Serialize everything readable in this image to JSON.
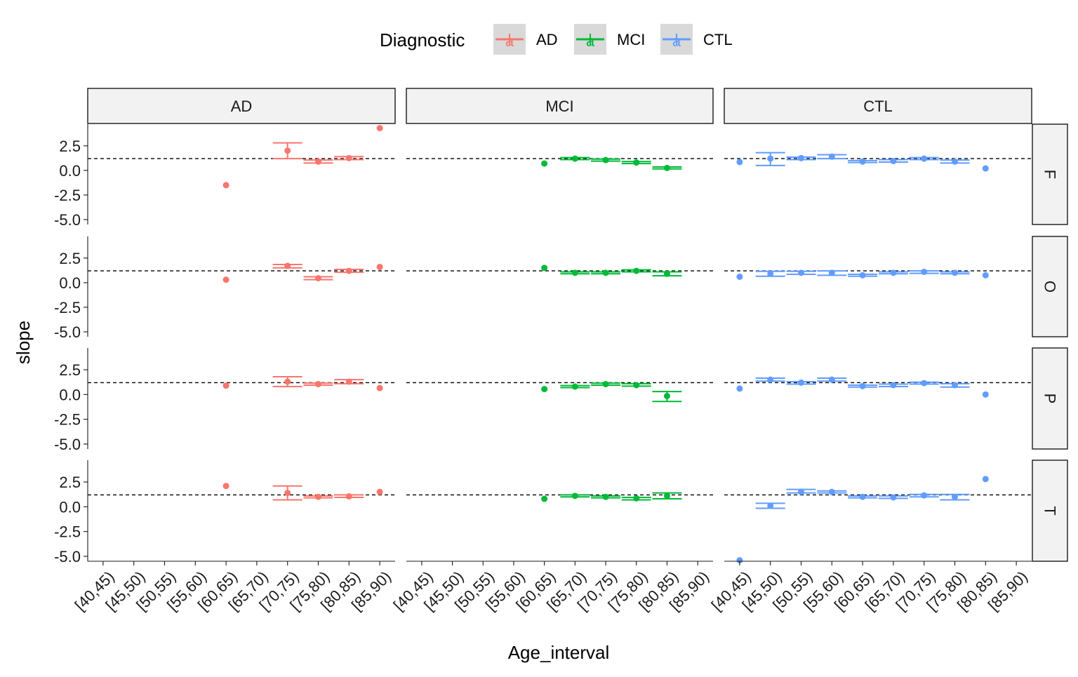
{
  "chart_data": {
    "type": "scatter",
    "xlabel": "Age_interval",
    "ylabel": "slope",
    "categories": [
      "[40,45)",
      "[45,50)",
      "[50,55)",
      "[55,60)",
      "[60,65)",
      "[65,70)",
      "[70,75)",
      "[75,80)",
      "[80,85)",
      "[85,90)"
    ],
    "y_ticks": [
      2.5,
      0.0,
      -2.5,
      -5.0
    ],
    "y_tick_labels": [
      "2.5",
      "0.0",
      "-2.5",
      "-5.0"
    ],
    "ylim": [
      -5.5,
      4.7
    ],
    "reference_line": 1.2,
    "legend": {
      "title": "Diagnostic",
      "position": "top",
      "key_glyph": "a",
      "entries": [
        {
          "name": "AD",
          "color": "#F8766D"
        },
        {
          "name": "MCI",
          "color": "#00BA38"
        },
        {
          "name": "CTL",
          "color": "#619CFF"
        }
      ]
    },
    "facet_columns": [
      "AD",
      "MCI",
      "CTL"
    ],
    "facet_rows": [
      "F",
      "O",
      "P",
      "T"
    ],
    "panels": [
      {
        "col": "AD",
        "row": "F",
        "points": [
          {
            "x": "[60,65)",
            "y": -1.5
          },
          {
            "x": "[70,75)",
            "y": 2.0,
            "ymin": 1.2,
            "ymax": 2.8
          },
          {
            "x": "[75,80)",
            "y": 0.9,
            "ymin": 0.75,
            "ymax": 1.05
          },
          {
            "x": "[80,85)",
            "y": 1.25,
            "ymin": 1.1,
            "ymax": 1.4
          },
          {
            "x": "[85,90)",
            "y": 4.3
          }
        ]
      },
      {
        "col": "MCI",
        "row": "F",
        "points": [
          {
            "x": "[60,65)",
            "y": 0.7
          },
          {
            "x": "[65,70)",
            "y": 1.2,
            "ymin": 1.1,
            "ymax": 1.3
          },
          {
            "x": "[70,75)",
            "y": 1.05,
            "ymin": 0.95,
            "ymax": 1.15
          },
          {
            "x": "[75,80)",
            "y": 0.8,
            "ymin": 0.7,
            "ymax": 0.9
          },
          {
            "x": "[80,85)",
            "y": 0.25,
            "ymin": 0.15,
            "ymax": 0.35
          }
        ]
      },
      {
        "col": "CTL",
        "row": "F",
        "points": [
          {
            "x": "[40,45)",
            "y": 0.85
          },
          {
            "x": "[45,50)",
            "y": 1.2,
            "ymin": 0.5,
            "ymax": 1.8
          },
          {
            "x": "[50,55)",
            "y": 1.25,
            "ymin": 1.1,
            "ymax": 1.35
          },
          {
            "x": "[55,60)",
            "y": 1.4,
            "ymin": 1.2,
            "ymax": 1.6
          },
          {
            "x": "[60,65)",
            "y": 0.9,
            "ymin": 0.8,
            "ymax": 1.0
          },
          {
            "x": "[65,70)",
            "y": 0.95,
            "ymin": 0.85,
            "ymax": 1.1
          },
          {
            "x": "[70,75)",
            "y": 1.2,
            "ymin": 1.1,
            "ymax": 1.3
          },
          {
            "x": "[75,80)",
            "y": 0.9,
            "ymin": 0.75,
            "ymax": 1.05
          },
          {
            "x": "[80,85)",
            "y": 0.2
          }
        ]
      },
      {
        "col": "AD",
        "row": "O",
        "points": [
          {
            "x": "[60,65)",
            "y": 0.3
          },
          {
            "x": "[70,75)",
            "y": 1.7,
            "ymin": 1.5,
            "ymax": 1.85
          },
          {
            "x": "[75,80)",
            "y": 0.45,
            "ymin": 0.3,
            "ymax": 0.6
          },
          {
            "x": "[80,85)",
            "y": 1.2,
            "ymin": 1.05,
            "ymax": 1.35
          },
          {
            "x": "[85,90)",
            "y": 1.6
          }
        ]
      },
      {
        "col": "MCI",
        "row": "O",
        "points": [
          {
            "x": "[60,65)",
            "y": 1.5
          },
          {
            "x": "[65,70)",
            "y": 1.0,
            "ymin": 0.9,
            "ymax": 1.1
          },
          {
            "x": "[70,75)",
            "y": 1.0,
            "ymin": 0.9,
            "ymax": 1.1
          },
          {
            "x": "[75,80)",
            "y": 1.2,
            "ymin": 1.1,
            "ymax": 1.3
          },
          {
            "x": "[80,85)",
            "y": 0.9,
            "ymin": 0.7,
            "ymax": 1.1
          }
        ]
      },
      {
        "col": "CTL",
        "row": "O",
        "points": [
          {
            "x": "[40,45)",
            "y": 0.6
          },
          {
            "x": "[45,50)",
            "y": 0.9,
            "ymin": 0.65,
            "ymax": 1.15
          },
          {
            "x": "[50,55)",
            "y": 1.0,
            "ymin": 0.85,
            "ymax": 1.15
          },
          {
            "x": "[55,60)",
            "y": 1.0,
            "ymin": 0.75,
            "ymax": 1.2
          },
          {
            "x": "[60,65)",
            "y": 0.75,
            "ymin": 0.65,
            "ymax": 0.85
          },
          {
            "x": "[65,70)",
            "y": 1.0,
            "ymin": 0.9,
            "ymax": 1.1
          },
          {
            "x": "[70,75)",
            "y": 1.1,
            "ymin": 0.95,
            "ymax": 1.2
          },
          {
            "x": "[75,80)",
            "y": 1.0,
            "ymin": 0.9,
            "ymax": 1.1
          },
          {
            "x": "[80,85)",
            "y": 0.75
          }
        ]
      },
      {
        "col": "AD",
        "row": "P",
        "points": [
          {
            "x": "[60,65)",
            "y": 0.9
          },
          {
            "x": "[70,75)",
            "y": 1.3,
            "ymin": 0.8,
            "ymax": 1.8
          },
          {
            "x": "[75,80)",
            "y": 1.05,
            "ymin": 0.95,
            "ymax": 1.15
          },
          {
            "x": "[80,85)",
            "y": 1.3,
            "ymin": 1.1,
            "ymax": 1.5
          },
          {
            "x": "[85,90)",
            "y": 0.65
          }
        ]
      },
      {
        "col": "MCI",
        "row": "P",
        "points": [
          {
            "x": "[60,65)",
            "y": 0.55
          },
          {
            "x": "[65,70)",
            "y": 0.8,
            "ymin": 0.7,
            "ymax": 0.9
          },
          {
            "x": "[70,75)",
            "y": 1.05,
            "ymin": 0.95,
            "ymax": 1.15
          },
          {
            "x": "[75,80)",
            "y": 0.95,
            "ymin": 0.85,
            "ymax": 1.1
          },
          {
            "x": "[80,85)",
            "y": -0.15,
            "ymin": -0.7,
            "ymax": 0.3
          }
        ]
      },
      {
        "col": "CTL",
        "row": "P",
        "points": [
          {
            "x": "[40,45)",
            "y": 0.6
          },
          {
            "x": "[45,50)",
            "y": 1.5,
            "ymin": 1.35,
            "ymax": 1.65
          },
          {
            "x": "[50,55)",
            "y": 1.2,
            "ymin": 1.05,
            "ymax": 1.3
          },
          {
            "x": "[55,60)",
            "y": 1.5,
            "ymin": 1.35,
            "ymax": 1.65
          },
          {
            "x": "[60,65)",
            "y": 0.85,
            "ymin": 0.75,
            "ymax": 0.95
          },
          {
            "x": "[65,70)",
            "y": 0.95,
            "ymin": 0.8,
            "ymax": 1.05
          },
          {
            "x": "[70,75)",
            "y": 1.15,
            "ymin": 1.05,
            "ymax": 1.25
          },
          {
            "x": "[75,80)",
            "y": 0.95,
            "ymin": 0.75,
            "ymax": 1.1
          },
          {
            "x": "[80,85)",
            "y": 0.0
          }
        ]
      },
      {
        "col": "AD",
        "row": "T",
        "points": [
          {
            "x": "[60,65)",
            "y": 2.1
          },
          {
            "x": "[70,75)",
            "y": 1.4,
            "ymin": 0.7,
            "ymax": 2.1
          },
          {
            "x": "[75,80)",
            "y": 1.0,
            "ymin": 0.9,
            "ymax": 1.1
          },
          {
            "x": "[80,85)",
            "y": 1.05,
            "ymin": 0.95,
            "ymax": 1.2
          },
          {
            "x": "[85,90)",
            "y": 1.5
          }
        ]
      },
      {
        "col": "MCI",
        "row": "T",
        "points": [
          {
            "x": "[60,65)",
            "y": 0.8
          },
          {
            "x": "[65,70)",
            "y": 1.1,
            "ymin": 1.0,
            "ymax": 1.2
          },
          {
            "x": "[70,75)",
            "y": 1.0,
            "ymin": 0.9,
            "ymax": 1.1
          },
          {
            "x": "[75,80)",
            "y": 0.85,
            "ymin": 0.7,
            "ymax": 0.95
          },
          {
            "x": "[80,85)",
            "y": 1.1,
            "ymin": 0.8,
            "ymax": 1.4
          }
        ]
      },
      {
        "col": "CTL",
        "row": "T",
        "points": [
          {
            "x": "[40,45)",
            "y": -5.4
          },
          {
            "x": "[45,50)",
            "y": 0.1,
            "ymin": -0.15,
            "ymax": 0.35
          },
          {
            "x": "[50,55)",
            "y": 1.5,
            "ymin": 1.4,
            "ymax": 1.75
          },
          {
            "x": "[55,60)",
            "y": 1.5,
            "ymin": 1.4,
            "ymax": 1.6
          },
          {
            "x": "[60,65)",
            "y": 1.0,
            "ymin": 0.9,
            "ymax": 1.1
          },
          {
            "x": "[65,70)",
            "y": 0.95,
            "ymin": 0.85,
            "ymax": 1.1
          },
          {
            "x": "[70,75)",
            "y": 1.15,
            "ymin": 1.0,
            "ymax": 1.25
          },
          {
            "x": "[75,80)",
            "y": 1.0,
            "ymin": 0.7,
            "ymax": 1.25
          },
          {
            "x": "[80,85)",
            "y": 2.8
          }
        ]
      }
    ]
  }
}
